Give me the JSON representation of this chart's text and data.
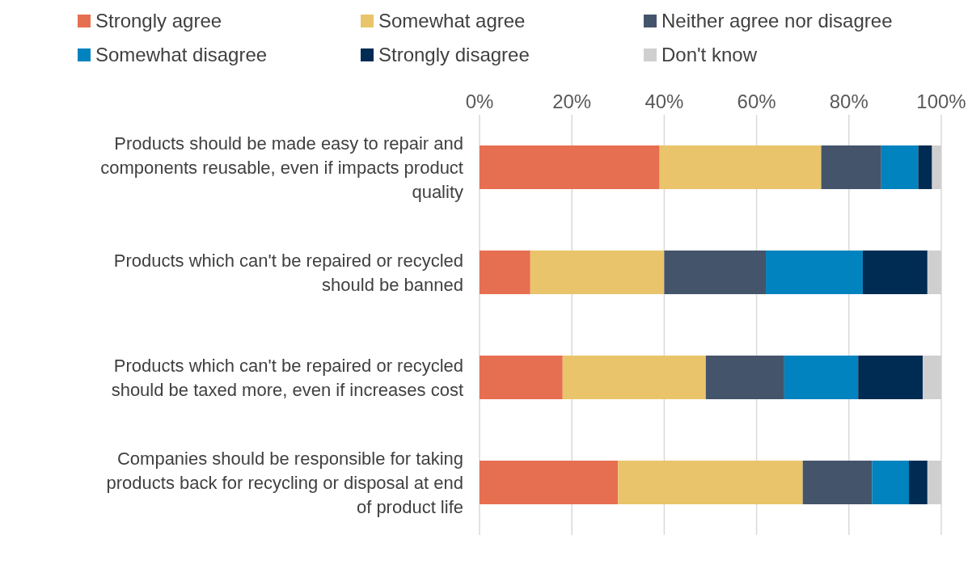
{
  "chart_data": {
    "type": "bar",
    "orientation": "horizontal",
    "stacked": true,
    "categories": [
      "Products should be made easy to repair and components reusable, even if impacts product quality",
      "Products which can't be repaired or recycled should be banned",
      "Products which can't be repaired or recycled should be taxed more, even if increases cost",
      "Companies should be responsible for taking products back for recycling or disposal at end of product life"
    ],
    "series": [
      {
        "name": "Strongly agree",
        "color": "#e76f51",
        "values": [
          39,
          11,
          18,
          30
        ]
      },
      {
        "name": "Somewhat agree",
        "color": "#e9c46a",
        "values": [
          35,
          29,
          31,
          40
        ]
      },
      {
        "name": "Neither agree nor disagree",
        "color": "#44546a",
        "values": [
          13,
          22,
          17,
          15
        ]
      },
      {
        "name": "Somewhat disagree",
        "color": "#0083be",
        "values": [
          8,
          21,
          16,
          8
        ]
      },
      {
        "name": "Strongly disagree",
        "color": "#002b52",
        "values": [
          3,
          14,
          14,
          4
        ]
      },
      {
        "name": "Don't know",
        "color": "#d0cfd0",
        "values": [
          2,
          3,
          4,
          3
        ]
      }
    ],
    "xlim": [
      0,
      100
    ],
    "xticks": [
      {
        "value": 0,
        "label": "0%"
      },
      {
        "value": 20,
        "label": "20%"
      },
      {
        "value": 40,
        "label": "40%"
      },
      {
        "value": 60,
        "label": "60%"
      },
      {
        "value": 80,
        "label": "80%"
      },
      {
        "value": 100,
        "label": "100%"
      }
    ],
    "grid": "x",
    "legend": "top"
  }
}
